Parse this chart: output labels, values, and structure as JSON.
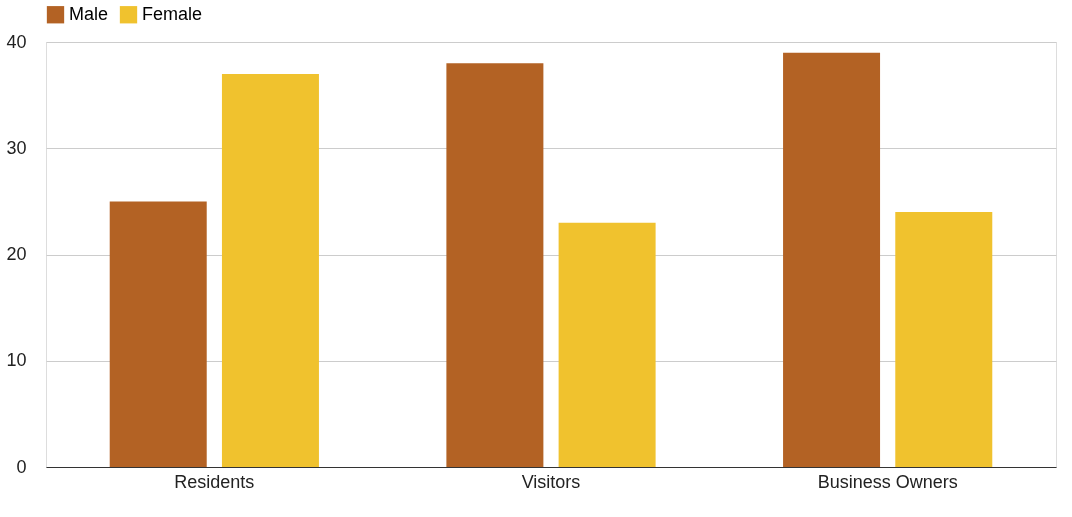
{
  "chart_data": {
    "type": "bar",
    "categories": [
      "Residents",
      "Visitors",
      "Business Owners"
    ],
    "series": [
      {
        "name": "Male",
        "color": "#b36224",
        "values": [
          25,
          38,
          39
        ]
      },
      {
        "name": "Female",
        "color": "#f0c22e",
        "values": [
          37,
          23,
          24
        ]
      }
    ],
    "ylim": [
      0,
      40
    ],
    "yticks": [
      0,
      10,
      20,
      30,
      40
    ],
    "grid": "y",
    "legend": "top"
  }
}
